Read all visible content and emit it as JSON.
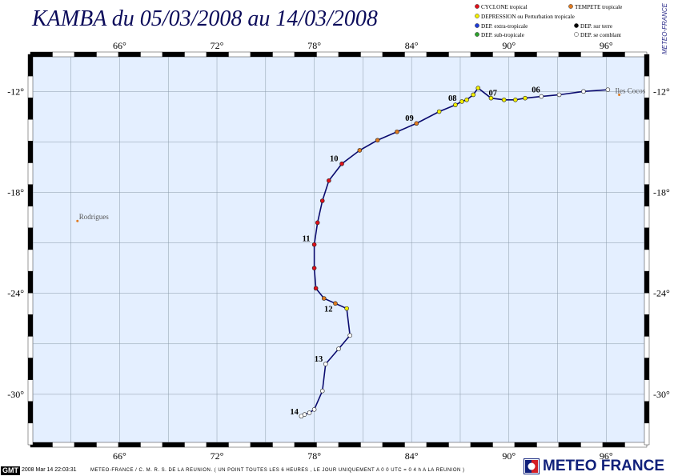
{
  "title": "KAMBA du 05/03/2008 au 14/03/2008",
  "side_label": "METEO-FRANCE",
  "map": {
    "lon_range": [
      60.5,
      98.5
    ],
    "lat_range": [
      -33.0,
      -9.8
    ],
    "lon_ticks": [
      66,
      72,
      78,
      84,
      90,
      96
    ],
    "lon_tick_labels": [
      "66°",
      "72°",
      "78°",
      "84°",
      "90°",
      "96°"
    ],
    "lat_ticks": [
      -12,
      -18,
      -24,
      -30
    ],
    "lat_tick_labels": [
      "-12°",
      "-18°",
      "-24°",
      "-30°"
    ],
    "background_color": "#e4efff",
    "grid_color": "#8a9aa8",
    "track_color": "#0a0a6e"
  },
  "legend": {
    "items": [
      {
        "label": "CYCLONE tropical",
        "color": "#e0101a"
      },
      {
        "label": "TEMPETE tropicale",
        "color": "#e07a20"
      },
      {
        "label": "DEPRESSION ou Perturbation tropicale",
        "color": "#f4f000"
      },
      {
        "label": "DEP. extra-tropicale",
        "color": "#1f3cd6"
      },
      {
        "label": "DEP. sur terre",
        "color": "#000000"
      },
      {
        "label": "DEP. sub-tropicale",
        "color": "#2da02d"
      },
      {
        "label": "DEP. se comblant",
        "color": "#ffffff"
      }
    ]
  },
  "places": [
    {
      "name": "Rodrigues",
      "lon": 63.4,
      "lat": -19.7
    },
    {
      "name": "Iles Cocos",
      "lon": 96.8,
      "lat": -12.2
    }
  ],
  "track": [
    {
      "lon": 96.1,
      "lat": -11.9,
      "status": "DEP. se comblant"
    },
    {
      "lon": 94.6,
      "lat": -12.0,
      "status": "DEP. se comblant"
    },
    {
      "lon": 93.1,
      "lat": -12.2,
      "status": "DEP. se comblant"
    },
    {
      "lon": 92.0,
      "lat": -12.3,
      "status": "DEP. se comblant",
      "day": "06"
    },
    {
      "lon": 91.0,
      "lat": -12.4,
      "status": "DEPRESSION ou Perturbation tropicale"
    },
    {
      "lon": 90.4,
      "lat": -12.5,
      "status": "DEPRESSION ou Perturbation tropicale"
    },
    {
      "lon": 89.7,
      "lat": -12.5,
      "status": "DEPRESSION ou Perturbation tropicale"
    },
    {
      "lon": 88.9,
      "lat": -12.4,
      "status": "DEPRESSION ou Perturbation tropicale",
      "day": "07"
    },
    {
      "lon": 88.1,
      "lat": -11.8,
      "status": "DEPRESSION ou Perturbation tropicale"
    },
    {
      "lon": 87.8,
      "lat": -12.2,
      "status": "DEPRESSION ou Perturbation tropicale"
    },
    {
      "lon": 87.4,
      "lat": -12.5,
      "status": "DEPRESSION ou Perturbation tropicale"
    },
    {
      "lon": 87.1,
      "lat": -12.6,
      "status": "DEPRESSION ou Perturbation tropicale",
      "day": "08"
    },
    {
      "lon": 86.7,
      "lat": -12.8,
      "status": "DEPRESSION ou Perturbation tropicale"
    },
    {
      "lon": 85.7,
      "lat": -13.2,
      "status": "DEPRESSION ou Perturbation tropicale"
    },
    {
      "lon": 84.3,
      "lat": -13.9,
      "status": "TEMPETE tropicale",
      "day": "09"
    },
    {
      "lon": 83.1,
      "lat": -14.4,
      "status": "TEMPETE tropicale"
    },
    {
      "lon": 81.9,
      "lat": -14.9,
      "status": "TEMPETE tropicale"
    },
    {
      "lon": 80.8,
      "lat": -15.5,
      "status": "TEMPETE tropicale"
    },
    {
      "lon": 79.7,
      "lat": -16.3,
      "status": "CYCLONE tropical",
      "day": "10"
    },
    {
      "lon": 78.9,
      "lat": -17.3,
      "status": "CYCLONE tropical"
    },
    {
      "lon": 78.5,
      "lat": -18.5,
      "status": "CYCLONE tropical"
    },
    {
      "lon": 78.2,
      "lat": -19.8,
      "status": "CYCLONE tropical"
    },
    {
      "lon": 78.0,
      "lat": -21.1,
      "status": "CYCLONE tropical",
      "day": "11"
    },
    {
      "lon": 78.0,
      "lat": -22.5,
      "status": "CYCLONE tropical"
    },
    {
      "lon": 78.1,
      "lat": -23.7,
      "status": "CYCLONE tropical"
    },
    {
      "lon": 78.6,
      "lat": -24.3,
      "status": "TEMPETE tropicale"
    },
    {
      "lon": 79.3,
      "lat": -24.6,
      "status": "TEMPETE tropicale",
      "day": "12"
    },
    {
      "lon": 80.0,
      "lat": -24.9,
      "status": "DEPRESSION ou Perturbation tropicale"
    },
    {
      "lon": 80.2,
      "lat": -26.5,
      "status": "DEP. se comblant"
    },
    {
      "lon": 79.5,
      "lat": -27.3,
      "status": "DEP. se comblant"
    },
    {
      "lon": 78.7,
      "lat": -28.2,
      "status": "DEP. se comblant",
      "day": "13"
    },
    {
      "lon": 78.5,
      "lat": -29.8,
      "status": "DEP. se comblant"
    },
    {
      "lon": 78.0,
      "lat": -30.9,
      "status": "DEP. se comblant"
    },
    {
      "lon": 77.7,
      "lat": -31.1,
      "status": "DEP. se comblant"
    },
    {
      "lon": 77.4,
      "lat": -31.2,
      "status": "DEP. se comblant"
    },
    {
      "lon": 77.2,
      "lat": -31.3,
      "status": "DEP. se comblant",
      "day": "14"
    }
  ],
  "footer": {
    "gmt_logo": "GMT",
    "stamp": "2008 Mar 14 22:03:31",
    "credit": "METEO-FRANCE / C. M. R. S. DE LA REUNION.  ( UN POINT TOUTES LES 6 HEURES , LE JOUR UNIQUEMENT A 0 0 UTC = 0 4 h A LA REUNION )"
  },
  "brand": {
    "name": "METEO FRANCE"
  }
}
